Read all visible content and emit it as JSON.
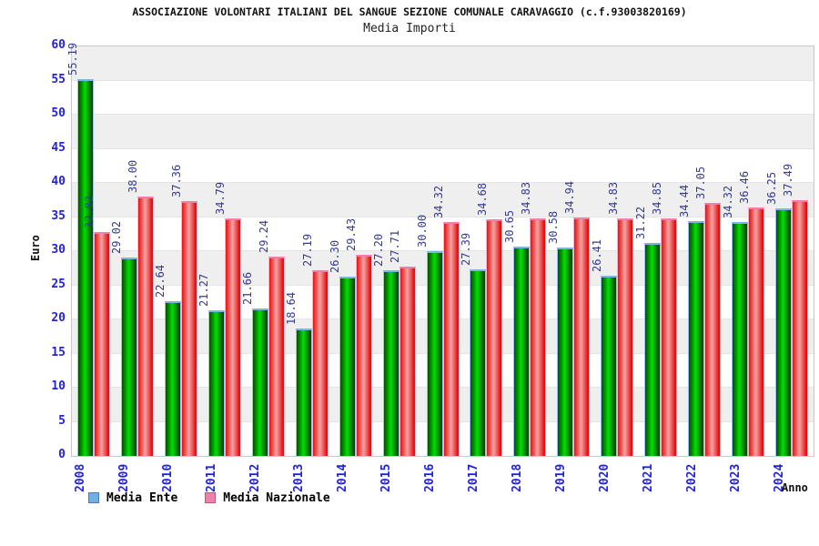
{
  "header": {
    "title": "ASSOCIAZIONE VOLONTARI ITALIANI DEL SANGUE SEZIONE COMUNALE CARAVAGGIO (c.f.93003820169)",
    "subtitle": "Media Importi"
  },
  "chart_data": {
    "type": "bar",
    "categories": [
      "2008",
      "2009",
      "2010",
      "2011",
      "2012",
      "2013",
      "2014",
      "2015",
      "2016",
      "2017",
      "2018",
      "2019",
      "2020",
      "2021",
      "2022",
      "2023",
      "2024"
    ],
    "series": [
      {
        "name": "Media Ente",
        "values": [
          55.19,
          29.02,
          22.64,
          21.27,
          21.66,
          18.64,
          26.3,
          27.2,
          30.0,
          27.39,
          30.65,
          30.58,
          26.41,
          31.22,
          34.44,
          34.32,
          36.25
        ]
      },
      {
        "name": "Media Nazionale",
        "values": [
          32.82,
          38.0,
          37.36,
          34.79,
          29.24,
          27.19,
          29.43,
          27.71,
          34.32,
          34.68,
          34.83,
          34.94,
          34.83,
          34.85,
          37.05,
          36.46,
          37.49
        ]
      }
    ],
    "title": "Media Importi",
    "xlabel": "Anno",
    "ylabel": "Euro",
    "ylim": [
      0,
      60
    ],
    "ytick_step": 5,
    "grid": "horizontal bands, alternating white/gray every 5 units",
    "legend_position": "bottom-left",
    "value_labels": "rotated 90deg above each bar, 2 decimals"
  },
  "colors": {
    "ente_bar": "#00c000",
    "naz_bar": "#ee3333",
    "ente_legend_swatch": "#6fb0e2",
    "naz_legend_swatch": "#ef82ab",
    "axis_text": "#2222dd",
    "value_label_text": "#333a99",
    "band_gray": "#efefef"
  }
}
